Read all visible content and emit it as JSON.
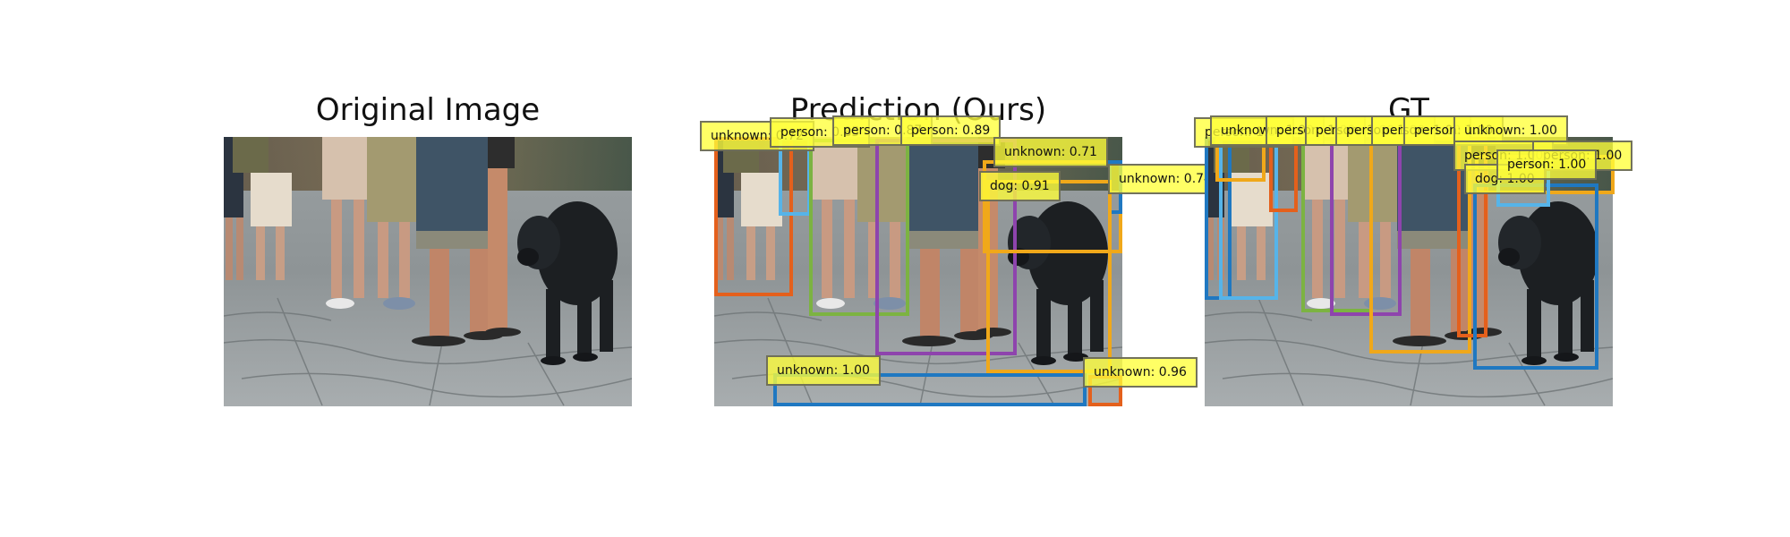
{
  "panels": [
    {
      "title": "Original Image"
    },
    {
      "title": "Prediction (Ours)"
    },
    {
      "title": "GT"
    }
  ],
  "prediction": {
    "detections": [
      {
        "label": "unknown: 0.72",
        "color": "#E4601C"
      },
      {
        "label": "person: 0.85",
        "color": "#56B4E9"
      },
      {
        "label": "person: 0.87",
        "color": "#7CB342"
      },
      {
        "label": "person: 0.89",
        "color": "#8E44AD"
      },
      {
        "label": "unknown: 0.71",
        "color": "#F0A81A"
      },
      {
        "label": "unknown: 0.74",
        "color": "#F0A81A"
      },
      {
        "label": "dog: 0.91",
        "color": "#F0A81A"
      },
      {
        "label": "unknown: 1.00",
        "color": "#1F78C1"
      },
      {
        "label": "unknown: 0.96",
        "color": "#E4601C"
      }
    ]
  },
  "gt": {
    "detections": [
      {
        "label": "person: 1.00",
        "color": "#1F78C1"
      },
      {
        "label": "unknown: 1.00",
        "color": "#F0A81A"
      },
      {
        "label": "person: 1.00",
        "color": "#E4601C"
      },
      {
        "label": "person: 1.00",
        "color": "#56B4E9"
      },
      {
        "label": "person: 1.00",
        "color": "#7CB342"
      },
      {
        "label": "person: 1.00",
        "color": "#8E44AD"
      },
      {
        "label": "person: 1.00",
        "color": "#F0A81A"
      },
      {
        "label": "unknown: 1.00",
        "color": "#E4601C"
      },
      {
        "label": "person: 1.00",
        "color": "#F0A81A"
      },
      {
        "label": "person: 1.00",
        "color": "#56B4E9"
      },
      {
        "label": "dog: 1.00",
        "color": "#1F78C1"
      },
      {
        "label": "person: 1.00",
        "color": "#1F78C1"
      }
    ]
  }
}
